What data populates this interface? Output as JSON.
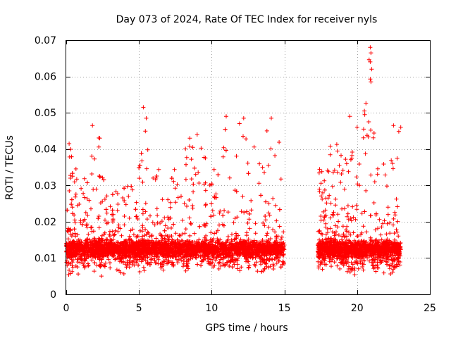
{
  "chart_data": {
    "type": "scatter",
    "title": "Day 073 of 2024, Rate Of TEC Index for receiver nyls",
    "xlabel": "GPS time / hours",
    "ylabel": "ROTI / TECUs",
    "xlim": [
      0,
      25
    ],
    "ylim": [
      0,
      0.07
    ],
    "xticks": [
      0,
      5,
      10,
      15,
      20,
      25
    ],
    "yticks": [
      0,
      0.01,
      0.02,
      0.03,
      0.04,
      0.05,
      0.06,
      0.07
    ],
    "xtick_labels": [
      "0",
      "5",
      "10",
      "15",
      "20",
      "25"
    ],
    "ytick_labels": [
      "0",
      "0.01",
      "0.02",
      "0.03",
      "0.04",
      "0.05",
      "0.06",
      "0.07"
    ],
    "grid": true,
    "marker": "+",
    "color": "#ff0000",
    "series": [
      {
        "name": "ROTI",
        "segments": [
          {
            "x_start": 0.0,
            "x_end": 15.0
          },
          {
            "x_start": 17.3,
            "x_end": 23.0
          }
        ],
        "envelope": [
          [
            0.0,
            0.005,
            0.035
          ],
          [
            0.3,
            0.005,
            0.041
          ],
          [
            1.0,
            0.005,
            0.03
          ],
          [
            1.8,
            0.005,
            0.046
          ],
          [
            2.3,
            0.003,
            0.043
          ],
          [
            3.0,
            0.005,
            0.028
          ],
          [
            4.0,
            0.005,
            0.03
          ],
          [
            5.0,
            0.006,
            0.036
          ],
          [
            5.3,
            0.006,
            0.051
          ],
          [
            5.6,
            0.006,
            0.048
          ],
          [
            6.0,
            0.006,
            0.04
          ],
          [
            7.0,
            0.006,
            0.034
          ],
          [
            8.0,
            0.006,
            0.039
          ],
          [
            8.5,
            0.005,
            0.043
          ],
          [
            9.0,
            0.006,
            0.044
          ],
          [
            10.0,
            0.006,
            0.034
          ],
          [
            11.0,
            0.006,
            0.049
          ],
          [
            11.5,
            0.005,
            0.047
          ],
          [
            12.2,
            0.006,
            0.048
          ],
          [
            13.0,
            0.006,
            0.04
          ],
          [
            13.8,
            0.005,
            0.046
          ],
          [
            14.5,
            0.006,
            0.048
          ],
          [
            15.0,
            0.006,
            0.03
          ],
          [
            17.3,
            0.007,
            0.034
          ],
          [
            17.8,
            0.006,
            0.039
          ],
          [
            18.5,
            0.007,
            0.043
          ],
          [
            19.0,
            0.006,
            0.04
          ],
          [
            19.5,
            0.003,
            0.049
          ],
          [
            20.0,
            0.005,
            0.045
          ],
          [
            20.5,
            0.006,
            0.051
          ],
          [
            20.8,
            0.006,
            0.068
          ],
          [
            21.3,
            0.005,
            0.04
          ],
          [
            22.0,
            0.005,
            0.035
          ],
          [
            22.5,
            0.005,
            0.047
          ],
          [
            23.0,
            0.006,
            0.046
          ]
        ],
        "typical_range": [
          0.009,
          0.016
        ],
        "peaks": [
          [
            0.2,
            0.0415
          ],
          [
            1.8,
            0.0465
          ],
          [
            2.3,
            0.043
          ],
          [
            5.3,
            0.0515
          ],
          [
            5.5,
            0.0485
          ],
          [
            8.5,
            0.043
          ],
          [
            9.0,
            0.044
          ],
          [
            11.0,
            0.049
          ],
          [
            12.2,
            0.0485
          ],
          [
            14.1,
            0.0485
          ],
          [
            13.8,
            0.045
          ],
          [
            19.5,
            0.049
          ],
          [
            20.0,
            0.046
          ],
          [
            20.5,
            0.0505
          ],
          [
            20.8,
            0.0475
          ],
          [
            20.9,
            0.068
          ],
          [
            20.95,
            0.0665
          ],
          [
            20.9,
            0.064
          ],
          [
            21.0,
            0.062
          ],
          [
            20.95,
            0.0585
          ],
          [
            22.5,
            0.0465
          ],
          [
            23.0,
            0.046
          ]
        ]
      }
    ]
  }
}
